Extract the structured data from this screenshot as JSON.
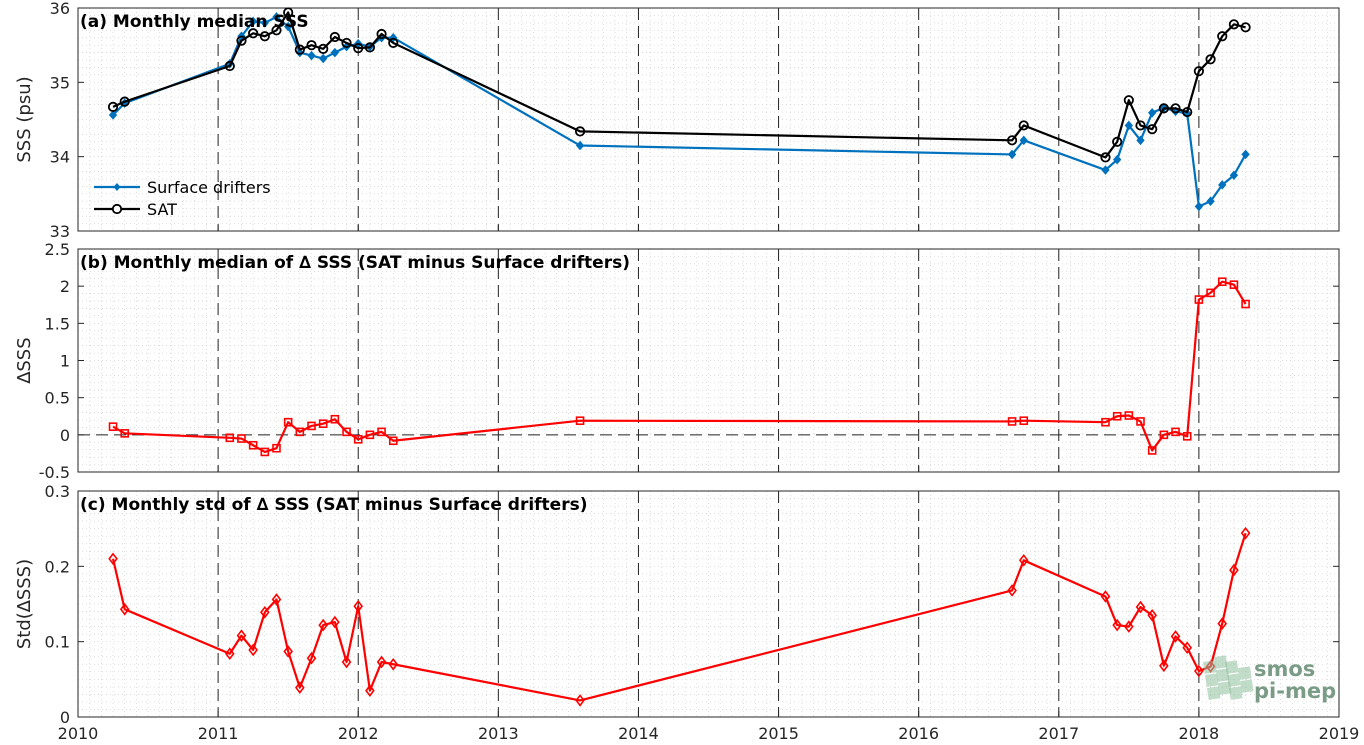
{
  "chart_data": [
    {
      "type": "line",
      "title": "(a) Monthly median SSS",
      "ylabel": "SSS (psu)",
      "xlim": [
        "2010",
        "2019"
      ],
      "ylim": [
        33,
        36
      ],
      "yticks": [
        "33",
        "34",
        "35",
        "36"
      ],
      "grid": true,
      "legend": "lower-left",
      "series": [
        {
          "name": "Surface drifters",
          "marker": "filled-diamond",
          "color": "#0072BD",
          "x": [
            "2010-04",
            "2010-05",
            "2011-02",
            "2011-03",
            "2011-04",
            "2011-05",
            "2011-06",
            "2011-07",
            "2011-08",
            "2011-09",
            "2011-10",
            "2011-11",
            "2011-12",
            "2012-01",
            "2012-02",
            "2012-03",
            "2012-04",
            "2013-08",
            "2016-09",
            "2016-10",
            "2017-05",
            "2017-06",
            "2017-07",
            "2017-08",
            "2017-09",
            "2017-10",
            "2017-11",
            "2017-12",
            "2018-01",
            "2018-02",
            "2018-03",
            "2018-04",
            "2018-05"
          ],
          "values": [
            34.56,
            34.72,
            35.25,
            35.62,
            35.82,
            35.8,
            35.88,
            35.75,
            35.4,
            35.36,
            35.32,
            35.4,
            35.48,
            35.52,
            35.48,
            35.6,
            35.6,
            34.15,
            34.03,
            34.22,
            33.82,
            33.96,
            34.42,
            34.22,
            34.59,
            34.66,
            34.61,
            34.58,
            33.33,
            33.4,
            33.62,
            33.75,
            34.03
          ]
        },
        {
          "name": "SAT",
          "marker": "open-circle",
          "color": "#000000",
          "x": [
            "2010-04",
            "2010-05",
            "2011-02",
            "2011-03",
            "2011-04",
            "2011-05",
            "2011-06",
            "2011-07",
            "2011-08",
            "2011-09",
            "2011-10",
            "2011-11",
            "2011-12",
            "2012-01",
            "2012-02",
            "2012-03",
            "2012-04",
            "2013-08",
            "2016-09",
            "2016-10",
            "2017-05",
            "2017-06",
            "2017-07",
            "2017-08",
            "2017-09",
            "2017-10",
            "2017-11",
            "2017-12",
            "2018-01",
            "2018-02",
            "2018-03",
            "2018-04",
            "2018-05"
          ],
          "values": [
            34.67,
            34.74,
            35.22,
            35.56,
            35.66,
            35.62,
            35.7,
            35.94,
            35.44,
            35.5,
            35.45,
            35.61,
            35.53,
            35.46,
            35.47,
            35.65,
            35.53,
            34.34,
            34.22,
            34.42,
            33.99,
            34.2,
            34.76,
            34.42,
            34.37,
            34.65,
            34.65,
            34.6,
            35.15,
            35.31,
            35.62,
            35.78,
            35.74
          ]
        }
      ]
    },
    {
      "type": "line",
      "title": "(b) Monthly median of ∆ SSS (SAT minus Surface drifters)",
      "ylabel": "∆SSS",
      "xlim": [
        "2010",
        "2019"
      ],
      "ylim": [
        -0.5,
        2.5
      ],
      "yticks": [
        "-0.5",
        "0",
        "0.5",
        "1",
        "1.5",
        "2",
        "2.5"
      ],
      "grid": true,
      "zero_line": true,
      "series": [
        {
          "marker": "open-square",
          "color": "#FF0000",
          "x": [
            "2010-04",
            "2010-05",
            "2011-02",
            "2011-03",
            "2011-04",
            "2011-05",
            "2011-06",
            "2011-07",
            "2011-08",
            "2011-09",
            "2011-10",
            "2011-11",
            "2011-12",
            "2012-01",
            "2012-02",
            "2012-03",
            "2012-04",
            "2013-08",
            "2016-09",
            "2016-10",
            "2017-05",
            "2017-06",
            "2017-07",
            "2017-08",
            "2017-09",
            "2017-10",
            "2017-11",
            "2017-12",
            "2018-01",
            "2018-02",
            "2018-03",
            "2018-04",
            "2018-05"
          ],
          "values": [
            0.11,
            0.02,
            -0.04,
            -0.05,
            -0.14,
            -0.23,
            -0.18,
            0.17,
            0.04,
            0.12,
            0.15,
            0.21,
            0.04,
            -0.06,
            0.0,
            0.04,
            -0.08,
            0.19,
            0.18,
            0.19,
            0.17,
            0.25,
            0.26,
            0.18,
            -0.21,
            0.0,
            0.04,
            -0.02,
            1.82,
            1.91,
            2.06,
            2.02,
            1.76
          ]
        }
      ]
    },
    {
      "type": "line",
      "title": "(c) Monthly std of ∆ SSS (SAT minus Surface drifters)",
      "ylabel": "Std(∆SSS)",
      "xlabel": "",
      "xlim": [
        "2010",
        "2019"
      ],
      "ylim": [
        0,
        0.3
      ],
      "xticks": [
        "2010",
        "2011",
        "2012",
        "2013",
        "2014",
        "2015",
        "2016",
        "2017",
        "2018",
        "2019"
      ],
      "yticks": [
        "0",
        "0.1",
        "0.2",
        "0.3"
      ],
      "grid": true,
      "series": [
        {
          "marker": "open-diamond",
          "color": "#FF0000",
          "x": [
            "2010-04",
            "2010-05",
            "2011-02",
            "2011-03",
            "2011-04",
            "2011-05",
            "2011-06",
            "2011-07",
            "2011-08",
            "2011-09",
            "2011-10",
            "2011-11",
            "2011-12",
            "2012-01",
            "2012-02",
            "2012-03",
            "2012-04",
            "2013-08",
            "2016-09",
            "2016-10",
            "2017-05",
            "2017-06",
            "2017-07",
            "2017-08",
            "2017-09",
            "2017-10",
            "2017-11",
            "2017-12",
            "2018-01",
            "2018-02",
            "2018-03",
            "2018-04",
            "2018-05"
          ],
          "values": [
            0.21,
            0.143,
            0.084,
            0.108,
            0.089,
            0.139,
            0.156,
            0.087,
            0.039,
            0.078,
            0.122,
            0.126,
            0.073,
            0.147,
            0.035,
            0.073,
            0.07,
            0.022,
            0.168,
            0.208,
            0.16,
            0.122,
            0.12,
            0.146,
            0.135,
            0.068,
            0.107,
            0.092,
            0.061,
            0.067,
            0.124,
            0.195,
            0.244
          ]
        }
      ]
    }
  ],
  "logo": {
    "line1": "smos",
    "line2": "pi-mep"
  }
}
